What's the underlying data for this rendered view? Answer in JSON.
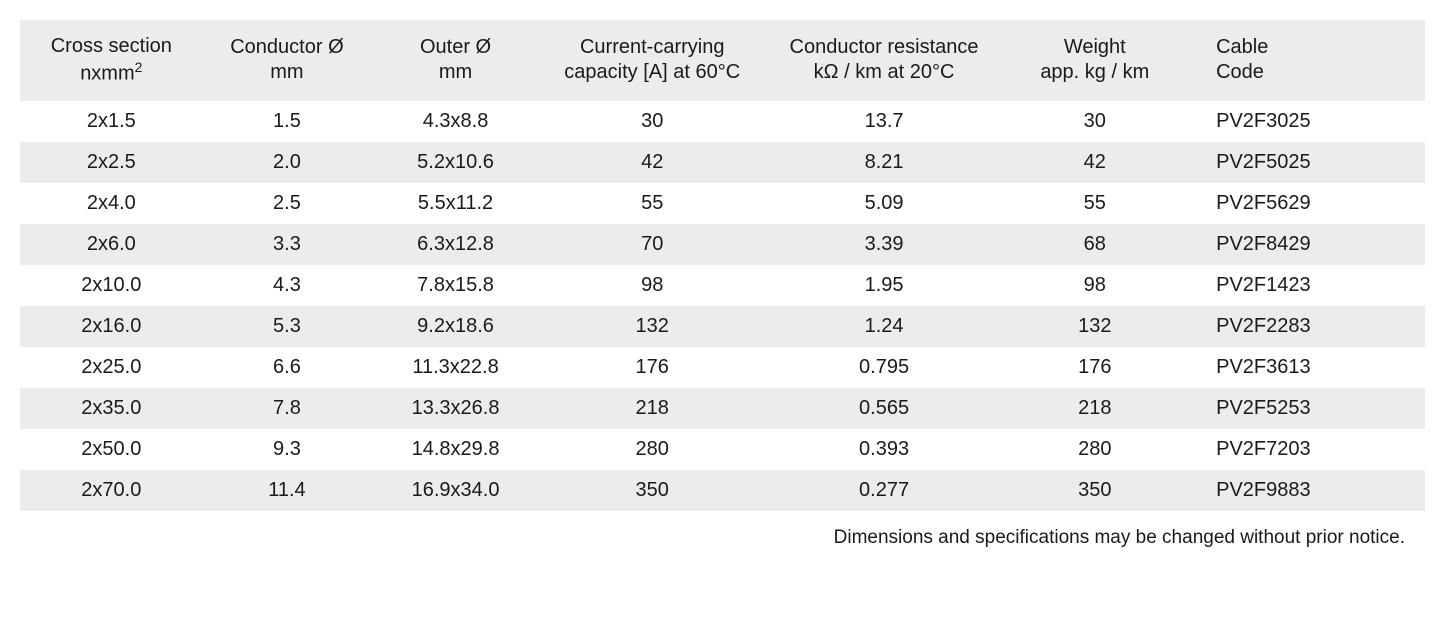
{
  "table": {
    "background_color": "#ffffff",
    "stripe_color": "#ececec",
    "text_color": "#1a1a1a",
    "font_size": 20,
    "header_font_size": 20,
    "column_widths_pct": [
      13,
      12,
      12,
      16,
      17,
      13,
      17
    ],
    "columns": [
      {
        "line1": "Cross section",
        "line2": "nxmm²"
      },
      {
        "line1": "Conductor Ø",
        "line2": "mm"
      },
      {
        "line1": "Outer Ø",
        "line2": "mm"
      },
      {
        "line1": "Current-carrying",
        "line2": "capacity [A] at 60°C"
      },
      {
        "line1": "Conductor resistance",
        "line2": "kΩ / km at 20°C"
      },
      {
        "line1": "Weight",
        "line2": "app. kg / km"
      },
      {
        "line1": "Cable",
        "line2": "Code"
      }
    ],
    "rows": [
      [
        "2x1.5",
        "1.5",
        "4.3x8.8",
        "30",
        "13.7",
        "30",
        "PV2F3025"
      ],
      [
        "2x2.5",
        "2.0",
        "5.2x10.6",
        "42",
        "8.21",
        "42",
        "PV2F5025"
      ],
      [
        "2x4.0",
        "2.5",
        "5.5x11.2",
        "55",
        "5.09",
        "55",
        "PV2F5629"
      ],
      [
        "2x6.0",
        "3.3",
        "6.3x12.8",
        "70",
        "3.39",
        "68",
        "PV2F8429"
      ],
      [
        "2x10.0",
        "4.3",
        "7.8x15.8",
        "98",
        "1.95",
        "98",
        "PV2F1423"
      ],
      [
        "2x16.0",
        "5.3",
        "9.2x18.6",
        "132",
        "1.24",
        "132",
        "PV2F2283"
      ],
      [
        "2x25.0",
        "6.6",
        "11.3x22.8",
        "176",
        "0.795",
        "176",
        "PV2F3613"
      ],
      [
        "2x35.0",
        "7.8",
        "13.3x26.8",
        "218",
        "0.565",
        "218",
        "PV2F5253"
      ],
      [
        "2x50.0",
        "9.3",
        "14.8x29.8",
        "280",
        "0.393",
        "280",
        "PV2F7203"
      ],
      [
        "2x70.0",
        "11.4",
        "16.9x34.0",
        "350",
        "0.277",
        "350",
        "PV2F9883"
      ]
    ]
  },
  "footnote": "Dimensions and specifications may be changed without prior notice."
}
